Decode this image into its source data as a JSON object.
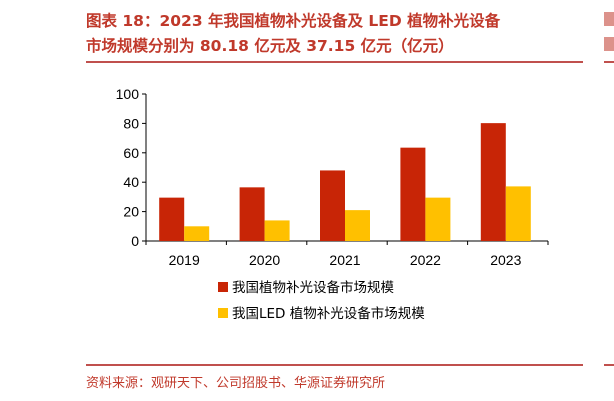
{
  "title": {
    "line1": "图表 18：2023 年我国植物补光设备及 LED 植物补光设备",
    "line2": "市场规模分别为 80.18 亿元及 37.15 亿元（亿元）"
  },
  "source": "资料来源：观研天下、公司招股书、华源证券研究所",
  "colors": {
    "series_1": "#c82506",
    "series_2": "#ffc000",
    "accent": "#c0504d"
  },
  "chart_data": {
    "type": "bar",
    "categories": [
      "2019",
      "2020",
      "2021",
      "2022",
      "2023"
    ],
    "series": [
      {
        "name": "我国植物补光设备市场规模",
        "values": [
          29.5,
          36.5,
          48.0,
          63.5,
          80.18
        ]
      },
      {
        "name": "我国LED 植物补光设备市场规模",
        "values": [
          10.0,
          14.0,
          21.0,
          29.5,
          37.15
        ]
      }
    ],
    "ylim": [
      0,
      100
    ],
    "yticks": [
      "0",
      "20",
      "40",
      "60",
      "80",
      "100"
    ],
    "xlabel": "",
    "ylabel": "",
    "grid": false,
    "legend_position": "bottom"
  }
}
